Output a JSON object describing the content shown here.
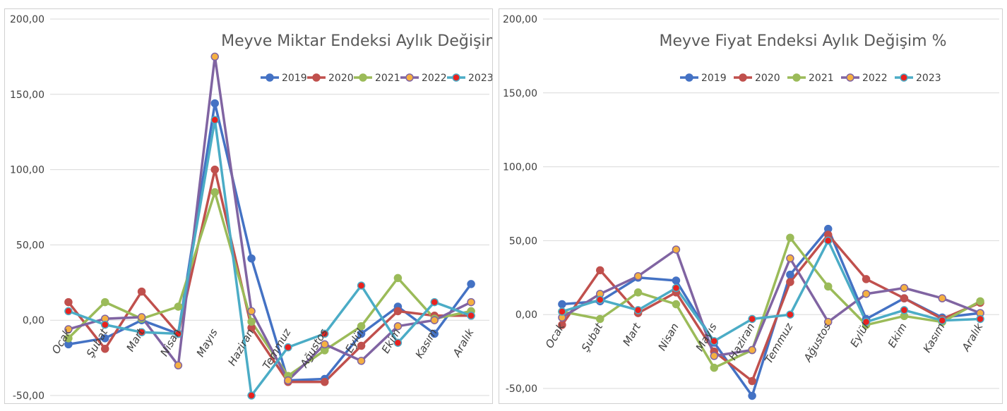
{
  "chart_data": [
    {
      "type": "line",
      "title": "Meyve Miktar Endeksi Aylık Değişim %",
      "xlabel": "",
      "ylabel": "",
      "ylim": [
        -50,
        200
      ],
      "yticks": [
        "-50,00",
        "0,00",
        "50,00",
        "100,00",
        "150,00",
        "200,00"
      ],
      "ytick_values": [
        -50,
        0,
        50,
        100,
        150,
        200
      ],
      "categories": [
        "Ocak",
        "Şubat",
        "Mart",
        "Nisan",
        "Mayıs",
        "Haziran",
        "Temmuz",
        "Ağustos",
        "Eylül",
        "Ekim",
        "Kasım",
        "Aralık"
      ],
      "grid": true,
      "legend_position": "top-right",
      "series": [
        {
          "name": "2019",
          "color": "#4472C4",
          "marker_fill": "#4472C4",
          "values": [
            -16,
            -12,
            0,
            -9,
            144,
            41,
            -40,
            -39,
            -9,
            9,
            -9,
            24
          ]
        },
        {
          "name": "2020",
          "color": "#C0504D",
          "marker_fill": "#C0504D",
          "values": [
            12,
            -19,
            19,
            -9,
            100,
            -5,
            -41,
            -41,
            -17,
            6,
            3,
            3
          ]
        },
        {
          "name": "2021",
          "color": "#9BBB59",
          "marker_fill": "#9BBB59",
          "values": [
            -12,
            12,
            1,
            9,
            85,
            -1,
            -37,
            -20,
            -4,
            28,
            1,
            6
          ]
        },
        {
          "name": "2022",
          "color": "#8064A2",
          "marker_fill": "#F5B041",
          "values": [
            -6,
            1,
            2,
            -30,
            175,
            6,
            -40,
            -16,
            -27,
            -4,
            0,
            12
          ]
        },
        {
          "name": "2023",
          "color": "#4BACC6",
          "marker_fill": "#E8221F",
          "values": [
            6,
            -3,
            -8,
            -9,
            133,
            -50,
            -18,
            -9,
            23,
            -15,
            12,
            3
          ]
        }
      ]
    },
    {
      "type": "line",
      "title": "Meyve Fiyat Endeksi Aylık Değişim %",
      "xlabel": "",
      "ylabel": "",
      "ylim": [
        -50,
        200
      ],
      "yticks": [
        "-50,00",
        "0,00",
        "50,00",
        "100,00",
        "150,00",
        "200,00"
      ],
      "ytick_values": [
        -50,
        0,
        50,
        100,
        150,
        200
      ],
      "categories": [
        "Ocak",
        "Şubat",
        "Mart",
        "Nisan",
        "Mayıs",
        "Haziran",
        "Temmuz",
        "Ağustos",
        "Eylül",
        "Ekim",
        "Kasım",
        "Aralık"
      ],
      "grid": true,
      "legend_position": "top-center",
      "series": [
        {
          "name": "2019",
          "color": "#4472C4",
          "marker_fill": "#4472C4",
          "values": [
            7,
            9,
            25,
            23,
            -19,
            -55,
            27,
            58,
            -3,
            11,
            -2,
            1
          ]
        },
        {
          "name": "2020",
          "color": "#C0504D",
          "marker_fill": "#C0504D",
          "values": [
            -7,
            30,
            1,
            15,
            -25,
            -45,
            22,
            54,
            24,
            11,
            -3,
            8
          ]
        },
        {
          "name": "2021",
          "color": "#9BBB59",
          "marker_fill": "#9BBB59",
          "values": [
            2,
            -3,
            15,
            7,
            -36,
            -24,
            52,
            19,
            -7,
            -1,
            -5,
            9
          ]
        },
        {
          "name": "2022",
          "color": "#8064A2",
          "marker_fill": "#F5B041",
          "values": [
            -2,
            14,
            26,
            44,
            -28,
            -24,
            38,
            -5,
            14,
            18,
            11,
            1
          ]
        },
        {
          "name": "2023",
          "color": "#4BACC6",
          "marker_fill": "#E8221F",
          "values": [
            2,
            10,
            3,
            18,
            -18,
            -3,
            0,
            50,
            -5,
            3,
            -4,
            -3
          ]
        }
      ]
    }
  ]
}
